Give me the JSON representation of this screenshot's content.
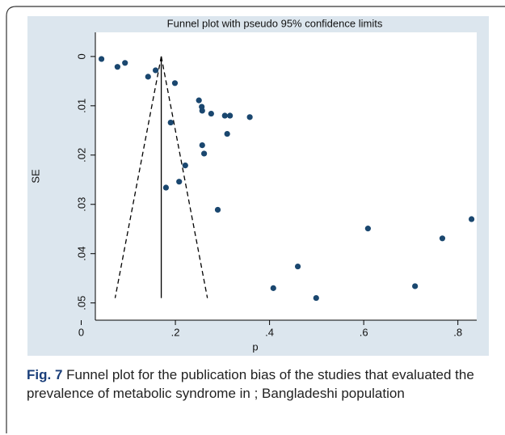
{
  "chart_data": {
    "type": "scatter",
    "title": "Funnel plot with pseudo 95% confidence limits",
    "xlabel": "p",
    "ylabel": "SE",
    "x": [
      0.043,
      0.077,
      0.093,
      0.142,
      0.158,
      0.199,
      0.19,
      0.18,
      0.208,
      0.221,
      0.25,
      0.256,
      0.257,
      0.257,
      0.261,
      0.276,
      0.305,
      0.316,
      0.31,
      0.358,
      0.29,
      0.408,
      0.46,
      0.499,
      0.609,
      0.709,
      0.767,
      0.829
    ],
    "values": [
      0.0005,
      0.0021,
      0.0013,
      0.0041,
      0.0028,
      0.0054,
      0.0134,
      0.0266,
      0.0254,
      0.0221,
      0.0089,
      0.0102,
      0.011,
      0.018,
      0.0197,
      0.0116,
      0.012,
      0.012,
      0.0157,
      0.0123,
      0.0311,
      0.047,
      0.0426,
      0.049,
      0.0349,
      0.0466,
      0.0369,
      0.033
    ],
    "color": "#1a476f",
    "limits": {
      "apex": [
        0.17,
        0
      ],
      "left": [
        0.072,
        0.049
      ],
      "right": [
        0.268,
        0.049
      ]
    },
    "xlim": [
      0.03,
      0.84
    ],
    "ylim": [
      -0.0049,
      0.0535
    ],
    "y_inverted": true,
    "xticks": [
      0,
      {
        "value": 0.2,
        "label": ".2"
      },
      {
        "value": 0.4,
        "label": ".4"
      },
      {
        "value": 0.6,
        "label": ".6"
      },
      {
        "value": 0.8,
        "label": ".8"
      }
    ],
    "yticks": [
      0,
      {
        "value": 0.01,
        "label": ".01"
      },
      {
        "value": 0.02,
        "label": ".02"
      },
      {
        "value": 0.03,
        "label": ".03"
      },
      {
        "value": 0.04,
        "label": ".04"
      },
      {
        "value": 0.05,
        "label": ".05"
      }
    ],
    "grid": false
  },
  "caption": {
    "label": "Fig. 7",
    "text": "Funnel plot for the publication bias of the studies that evaluated the prevalence of metabolic syndrome in ; Bangladeshi population"
  }
}
